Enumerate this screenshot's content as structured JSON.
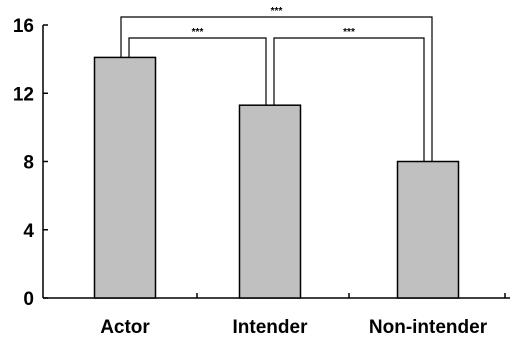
{
  "chart_data": {
    "type": "bar",
    "title": "",
    "xlabel": "",
    "ylabel": "",
    "categories": [
      "Actor",
      "Intender",
      "Non-intender"
    ],
    "values": [
      14.1,
      11.3,
      8.0
    ],
    "ylim": [
      0,
      16
    ],
    "yticks": [
      0,
      4,
      8,
      12,
      16
    ],
    "ytick_labels": [
      "0",
      "4",
      "8",
      "12",
      "16"
    ],
    "grid": false,
    "legend": "none",
    "bar_color": "#c0c0c0",
    "bar_edge_color": "#000000",
    "annotations": [
      {
        "from": 0,
        "to": 1,
        "label": "***"
      },
      {
        "from": 1,
        "to": 2,
        "label": "***"
      },
      {
        "from": 0,
        "to": 2,
        "label": "***"
      }
    ]
  }
}
